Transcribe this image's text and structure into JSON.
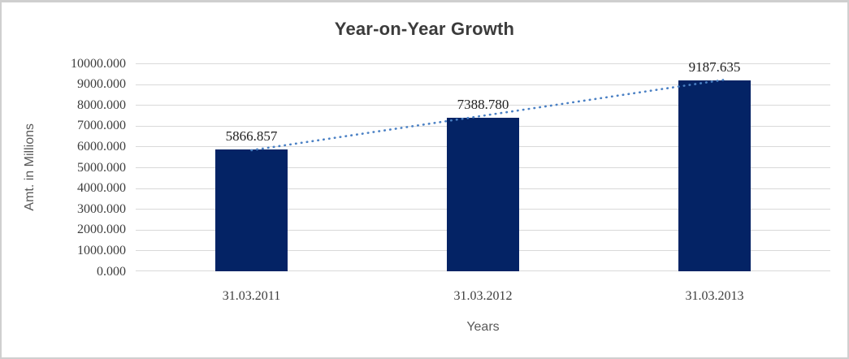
{
  "chart_data": {
    "type": "bar",
    "title": "Year-on-Year Growth",
    "xlabel": "Years",
    "ylabel": "Amt. in Millions",
    "categories": [
      "31.03.2011",
      "31.03.2012",
      "31.03.2013"
    ],
    "values": [
      5866.857,
      7388.78,
      9187.635
    ],
    "data_labels": [
      "5866.857",
      "7388.780",
      "9187.635"
    ],
    "yticks": [
      "10000.000",
      "9000.000",
      "8000.000",
      "7000.000",
      "6000.000",
      "5000.000",
      "4000.000",
      "3000.000",
      "2000.000",
      "1000.000",
      "0.000"
    ],
    "ylim": [
      0,
      10000
    ],
    "grid": true,
    "legend": false,
    "series_name": "",
    "trendline": {
      "type": "linear",
      "style": "dotted",
      "color": "#4a80c4"
    },
    "colors": {
      "bar": "#042365",
      "gridline": "#d9d9d9",
      "title_text": "#3b3b3b",
      "axis_title_text": "#595959",
      "tick_text": "#3d3d3d",
      "data_label_text": "#1f1f1f",
      "frame_border": "#cfcfcf",
      "background": "#ffffff"
    }
  }
}
